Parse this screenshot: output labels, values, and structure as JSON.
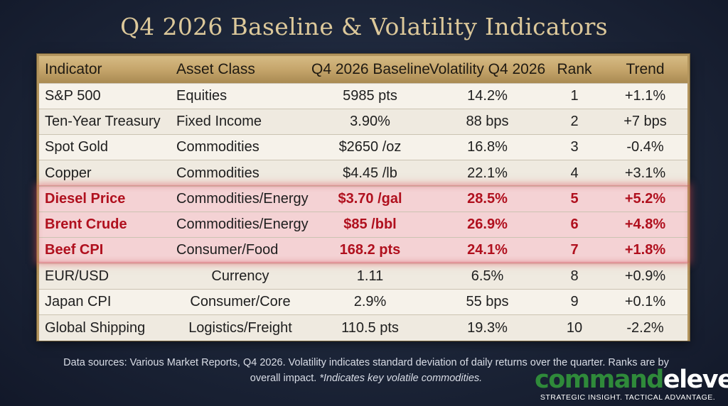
{
  "title": "Q4 2026 Baseline & Volatility Indicators",
  "table": {
    "headers": [
      "Indicator",
      "Asset Class",
      "Q4 2026 Baseline",
      "Volatility Q4 2026",
      "Rank",
      "Trend"
    ],
    "rows": [
      {
        "indicator": "S&P 500",
        "asset_class": "Equities",
        "baseline": "5985 pts",
        "volatility": "14.2%",
        "rank": "1",
        "trend": "+1.1%"
      },
      {
        "indicator": "Ten-Year Treasury",
        "asset_class": "Fixed Income",
        "baseline": "3.90%",
        "volatility": "88 bps",
        "rank": "2",
        "trend": "+7 bps"
      },
      {
        "indicator": "Spot Gold",
        "asset_class": "Commodities",
        "baseline": "$2650 /oz",
        "volatility": "16.8%",
        "rank": "3",
        "trend": "-0.4%"
      },
      {
        "indicator": "Copper",
        "asset_class": "Commodities",
        "baseline": "$4.45 /lb",
        "volatility": "22.1%",
        "rank": "4",
        "trend": "+3.1%"
      },
      {
        "indicator": "Diesel Price",
        "asset_class": "Commodities/Energy",
        "baseline": "$3.70 /gal",
        "volatility": "28.5%",
        "rank": "5",
        "trend": "+5.2%"
      },
      {
        "indicator": "Brent Crude",
        "asset_class": "Commodities/Energy",
        "baseline": "$85 /bbl",
        "volatility": "26.9%",
        "rank": "6",
        "trend": "+4.8%"
      },
      {
        "indicator": "Beef CPI",
        "asset_class": "Consumer/Food",
        "baseline": "168.2 pts",
        "volatility": "24.1%",
        "rank": "7",
        "trend": "+1.8%"
      },
      {
        "indicator": "EUR/USD",
        "asset_class": "Currency",
        "baseline": "1.11",
        "volatility": "6.5%",
        "rank": "8",
        "trend": "+0.9%"
      },
      {
        "indicator": "Japan CPI",
        "asset_class": "Consumer/Core",
        "baseline": "2.9%",
        "volatility": "55 bps",
        "rank": "9",
        "trend": "+0.1%"
      },
      {
        "indicator": "Global Shipping",
        "asset_class": "Logistics/Freight",
        "baseline": "110.5 pts",
        "volatility": "19.3%",
        "rank": "10",
        "trend": "-2.2%"
      }
    ],
    "highlight_color": "#b0101e"
  },
  "footnote": {
    "text": "Data sources: Various Market Reports, Q4 2026. Volatility indicates standard deviation of daily returns over the quarter. Ranks are by overall impact.",
    "italic": "*Indicates key volatile commodities."
  },
  "logo": {
    "part1": "command",
    "part2": "eleven",
    "tagline": "STRATEGIC INSIGHT. TACTICAL ADVANTAGE.",
    "color_primary": "#2f8a3a",
    "color_secondary": "#ffffff"
  },
  "colors": {
    "background": "#1c2538",
    "title": "#dcc89a",
    "header_gold": "#c5a56b"
  }
}
